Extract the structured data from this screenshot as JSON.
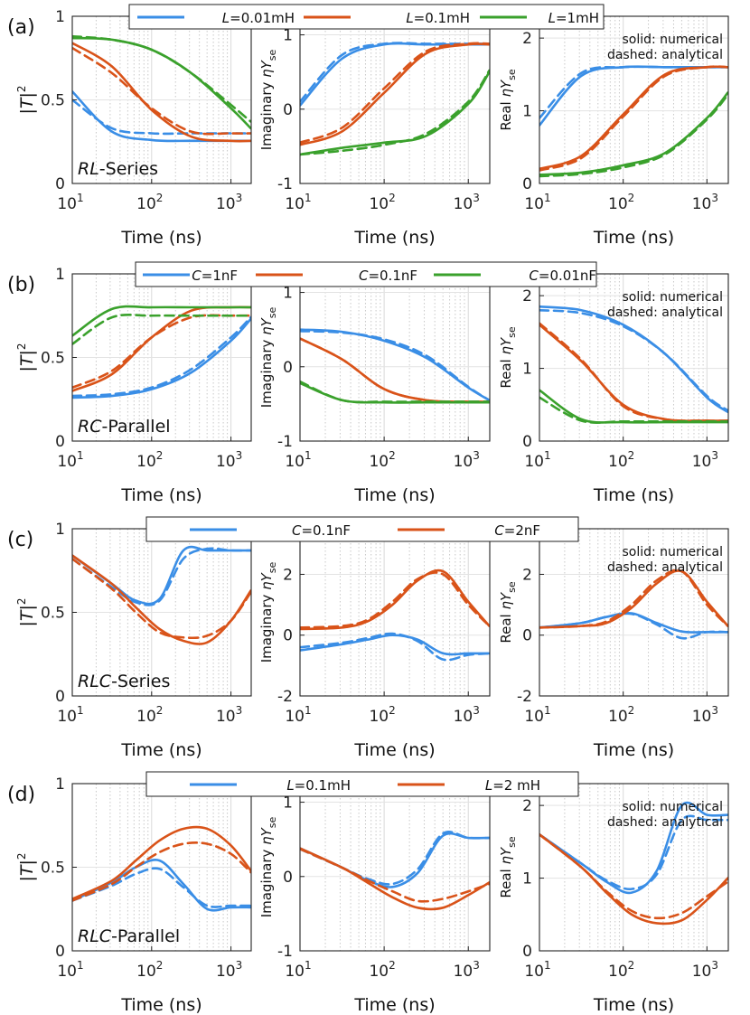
{
  "figure": {
    "xlabel": "Time (ns)",
    "ylabels": [
      "|T|²",
      "Imaginary ηY_se",
      "Real ηY_se"
    ],
    "note_solid": "solid: numerical",
    "note_dashed": "dashed: analytical",
    "colors": {
      "blue": "#3a8ee6",
      "red": "#d95319",
      "green": "#3aa12c"
    }
  },
  "chart_data": [
    {
      "type": "line",
      "row_label": "(a)",
      "annotation": "RL-Series",
      "title": "",
      "legend": [
        "L=0.01mH",
        "L=0.1mH",
        "L=1mH"
      ],
      "x": [
        1,
        1.5,
        2,
        2.5,
        3,
        3.25
      ],
      "xlabel": "Time (ns)",
      "xscale": "log",
      "xlim": [
        10,
        1800
      ],
      "panels": [
        {
          "ylabel": "|T|²",
          "ylim": [
            0,
            1
          ],
          "yticks": [
            0,
            0.5,
            1
          ],
          "series": [
            {
              "name": "L=0.01mH",
              "color": "blue",
              "solid": [
                0.55,
                0.31,
                0.26,
                0.255,
                0.255,
                0.255
              ],
              "dashed": [
                0.5,
                0.33,
                0.3,
                0.3,
                0.3,
                0.3
              ]
            },
            {
              "name": "L=0.1mH",
              "color": "red",
              "solid": [
                0.84,
                0.7,
                0.44,
                0.28,
                0.255,
                0.255
              ],
              "dashed": [
                0.81,
                0.66,
                0.45,
                0.31,
                0.3,
                0.3
              ]
            },
            {
              "name": "L=1mH",
              "color": "green",
              "solid": [
                0.87,
                0.86,
                0.8,
                0.66,
                0.45,
                0.33
              ],
              "dashed": [
                0.88,
                0.86,
                0.8,
                0.66,
                0.47,
                0.37
              ]
            }
          ]
        },
        {
          "ylabel": "Imaginary ηY_se",
          "ylim": [
            -1,
            1.25
          ],
          "yticks": [
            -1,
            0,
            1
          ],
          "series": [
            {
              "name": "L=0.01mH",
              "color": "blue",
              "solid": [
                0.05,
                0.68,
                0.87,
                0.87,
                0.87,
                0.87
              ],
              "dashed": [
                0.1,
                0.73,
                0.88,
                0.88,
                0.88,
                0.88
              ]
            },
            {
              "name": "L=0.1mH",
              "color": "red",
              "solid": [
                -0.48,
                -0.3,
                0.22,
                0.75,
                0.87,
                0.87
              ],
              "dashed": [
                -0.45,
                -0.25,
                0.28,
                0.78,
                0.88,
                0.88
              ]
            },
            {
              "name": "L=1mH",
              "color": "green",
              "solid": [
                -0.61,
                -0.52,
                -0.45,
                -0.36,
                0.07,
                0.5
              ],
              "dashed": [
                -0.61,
                -0.56,
                -0.48,
                -0.33,
                0.1,
                0.52
              ]
            }
          ]
        },
        {
          "ylabel": "Real ηY_se",
          "ylim": [
            0,
            2.3
          ],
          "yticks": [
            0,
            1,
            2
          ],
          "series": [
            {
              "name": "L=0.01mH",
              "color": "blue",
              "solid": [
                0.8,
                1.48,
                1.6,
                1.6,
                1.6,
                1.6
              ],
              "dashed": [
                0.9,
                1.52,
                1.6,
                1.6,
                1.6,
                1.6
              ]
            },
            {
              "name": "L=0.1mH",
              "color": "red",
              "solid": [
                0.2,
                0.38,
                0.95,
                1.5,
                1.6,
                1.6
              ],
              "dashed": [
                0.18,
                0.35,
                0.92,
                1.48,
                1.6,
                1.6
              ]
            },
            {
              "name": "L=1mH",
              "color": "green",
              "solid": [
                0.12,
                0.15,
                0.25,
                0.42,
                0.9,
                1.25
              ],
              "dashed": [
                0.1,
                0.13,
                0.22,
                0.4,
                0.88,
                1.22
              ]
            }
          ]
        }
      ]
    },
    {
      "type": "line",
      "row_label": "(b)",
      "annotation": "RC-Parallel",
      "title": "",
      "legend": [
        "C=1nF",
        "C=0.1nF",
        "C=0.01nF"
      ],
      "x": [
        1,
        1.5,
        2,
        2.5,
        3,
        3.25
      ],
      "xlabel": "Time (ns)",
      "xscale": "log",
      "xlim": [
        10,
        1800
      ],
      "panels": [
        {
          "ylabel": "|T|²",
          "ylim": [
            0,
            1
          ],
          "yticks": [
            0,
            0.5,
            1
          ],
          "series": [
            {
              "name": "C=1nF",
              "color": "blue",
              "solid": [
                0.26,
                0.27,
                0.31,
                0.41,
                0.6,
                0.73
              ],
              "dashed": [
                0.27,
                0.28,
                0.32,
                0.43,
                0.62,
                0.74
              ]
            },
            {
              "name": "C=0.1nF",
              "color": "red",
              "solid": [
                0.3,
                0.4,
                0.62,
                0.78,
                0.8,
                0.8
              ],
              "dashed": [
                0.32,
                0.42,
                0.62,
                0.74,
                0.75,
                0.75
              ]
            },
            {
              "name": "C=0.01nF",
              "color": "green",
              "solid": [
                0.63,
                0.79,
                0.8,
                0.8,
                0.8,
                0.8
              ],
              "dashed": [
                0.58,
                0.74,
                0.75,
                0.75,
                0.75,
                0.75
              ]
            }
          ]
        },
        {
          "ylabel": "Imaginary ηY_se",
          "ylim": [
            -1,
            1.25
          ],
          "yticks": [
            -1,
            0,
            1
          ],
          "series": [
            {
              "name": "C=1nF",
              "color": "blue",
              "solid": [
                0.5,
                0.47,
                0.35,
                0.12,
                -0.28,
                -0.45
              ],
              "dashed": [
                0.48,
                0.46,
                0.37,
                0.15,
                -0.27,
                -0.45
              ]
            },
            {
              "name": "C=0.1nF",
              "color": "red",
              "solid": [
                0.38,
                0.1,
                -0.3,
                -0.45,
                -0.47,
                -0.47
              ],
              "dashed": [
                0.38,
                0.1,
                -0.3,
                -0.45,
                -0.47,
                -0.47
              ]
            },
            {
              "name": "C=0.01nF",
              "color": "green",
              "solid": [
                -0.22,
                -0.45,
                -0.48,
                -0.48,
                -0.48,
                -0.48
              ],
              "dashed": [
                -0.2,
                -0.45,
                -0.47,
                -0.47,
                -0.47,
                -0.47
              ]
            }
          ]
        },
        {
          "ylabel": "Real ηY_se",
          "ylim": [
            0,
            2.3
          ],
          "yticks": [
            0,
            1,
            2
          ],
          "series": [
            {
              "name": "C=1nF",
              "color": "blue",
              "solid": [
                1.85,
                1.8,
                1.6,
                1.2,
                0.6,
                0.4
              ],
              "dashed": [
                1.8,
                1.76,
                1.58,
                1.2,
                0.62,
                0.42
              ]
            },
            {
              "name": "C=0.1nF",
              "color": "red",
              "solid": [
                1.6,
                1.1,
                0.5,
                0.3,
                0.28,
                0.28
              ],
              "dashed": [
                1.62,
                1.12,
                0.48,
                0.3,
                0.28,
                0.28
              ]
            },
            {
              "name": "C=0.01nF",
              "color": "green",
              "solid": [
                0.7,
                0.3,
                0.26,
                0.26,
                0.26,
                0.26
              ],
              "dashed": [
                0.6,
                0.28,
                0.27,
                0.27,
                0.27,
                0.27
              ]
            }
          ]
        }
      ]
    },
    {
      "type": "line",
      "row_label": "(c)",
      "annotation": "RLC-Series",
      "title": "",
      "legend": [
        "C=0.1nF",
        "C=2nF"
      ],
      "x": [
        1,
        1.5,
        1.8,
        2.1,
        2.4,
        2.7,
        3.0,
        3.25
      ],
      "xlabel": "Time (ns)",
      "xscale": "log",
      "xlim": [
        10,
        1800
      ],
      "panels": [
        {
          "ylabel": "|T|²",
          "ylim": [
            0,
            1
          ],
          "yticks": [
            0,
            0.5,
            1
          ],
          "series": [
            {
              "name": "C=0.1nF",
              "color": "blue",
              "solid": [
                0.84,
                0.67,
                0.57,
                0.58,
                0.87,
                0.87,
                0.87,
                0.87
              ],
              "dashed": [
                0.82,
                0.65,
                0.56,
                0.57,
                0.82,
                0.88,
                0.87,
                0.87
              ]
            },
            {
              "name": "C=2nF",
              "color": "red",
              "solid": [
                0.84,
                0.67,
                0.53,
                0.4,
                0.33,
                0.32,
                0.45,
                0.63
              ],
              "dashed": [
                0.82,
                0.64,
                0.5,
                0.38,
                0.35,
                0.36,
                0.45,
                0.62
              ]
            }
          ]
        },
        {
          "ylabel": "Imaginary ηY_se",
          "ylim": [
            -2,
            3.5
          ],
          "yticks": [
            -2,
            0,
            2
          ],
          "series": [
            {
              "name": "C=0.1nF",
              "color": "blue",
              "solid": [
                -0.5,
                -0.3,
                -0.15,
                0,
                -0.15,
                -0.6,
                -0.6,
                -0.6
              ],
              "dashed": [
                -0.4,
                -0.25,
                -0.1,
                0.05,
                -0.2,
                -0.8,
                -0.65,
                -0.6
              ]
            },
            {
              "name": "C=2nF",
              "color": "red",
              "solid": [
                0.2,
                0.25,
                0.45,
                1.0,
                1.8,
                2.1,
                1.1,
                0.3
              ],
              "dashed": [
                0.25,
                0.3,
                0.5,
                1.1,
                1.85,
                2.0,
                1.0,
                0.3
              ]
            }
          ]
        },
        {
          "ylabel": "Real ηY_se",
          "ylim": [
            -2,
            3.5
          ],
          "yticks": [
            -2,
            0,
            2
          ],
          "series": [
            {
              "name": "C=0.1nF",
              "color": "blue",
              "solid": [
                0.25,
                0.4,
                0.6,
                0.72,
                0.4,
                0.12,
                0.1,
                0.1
              ],
              "dashed": [
                0.25,
                0.4,
                0.6,
                0.7,
                0.35,
                -0.1,
                0.1,
                0.1
              ]
            },
            {
              "name": "C=2nF",
              "color": "red",
              "solid": [
                0.25,
                0.3,
                0.4,
                0.9,
                1.7,
                2.1,
                1.1,
                0.3
              ],
              "dashed": [
                0.25,
                0.3,
                0.45,
                1.0,
                1.8,
                2.1,
                1.0,
                0.3
              ]
            }
          ]
        }
      ]
    },
    {
      "type": "line",
      "row_label": "(d)",
      "annotation": "RLC-Parallel",
      "title": "",
      "legend": [
        "L=0.1mH",
        "L=2 mH"
      ],
      "x": [
        1,
        1.5,
        1.8,
        2.1,
        2.4,
        2.7,
        3.0,
        3.25
      ],
      "xlabel": "Time (ns)",
      "xscale": "log",
      "xlim": [
        10,
        1800
      ],
      "panels": [
        {
          "ylabel": "|T|²",
          "ylim": [
            0,
            1
          ],
          "yticks": [
            0,
            0.5,
            1
          ],
          "series": [
            {
              "name": "L=0.1mH",
              "color": "blue",
              "solid": [
                0.3,
                0.41,
                0.5,
                0.54,
                0.4,
                0.25,
                0.26,
                0.26
              ],
              "dashed": [
                0.3,
                0.39,
                0.46,
                0.49,
                0.38,
                0.27,
                0.27,
                0.27
              ]
            },
            {
              "name": "L=2 mH",
              "color": "red",
              "solid": [
                0.31,
                0.42,
                0.54,
                0.66,
                0.73,
                0.73,
                0.63,
                0.48
              ],
              "dashed": [
                0.3,
                0.4,
                0.5,
                0.59,
                0.64,
                0.64,
                0.58,
                0.47
              ]
            }
          ]
        },
        {
          "ylabel": "Imaginary ηY_se",
          "ylim": [
            -1,
            1.25
          ],
          "yticks": [
            -1,
            0,
            1
          ],
          "series": [
            {
              "name": "L=0.1mH",
              "color": "blue",
              "solid": [
                0.38,
                0.12,
                -0.05,
                -0.14,
                0.05,
                0.55,
                0.52,
                0.52
              ],
              "dashed": [
                0.37,
                0.12,
                -0.03,
                -0.1,
                0.1,
                0.58,
                0.52,
                0.52
              ]
            },
            {
              "name": "L=2 mH",
              "color": "red",
              "solid": [
                0.38,
                0.12,
                -0.08,
                -0.28,
                -0.42,
                -0.42,
                -0.25,
                -0.08
              ],
              "dashed": [
                0.37,
                0.12,
                -0.05,
                -0.2,
                -0.33,
                -0.3,
                -0.2,
                -0.1
              ]
            }
          ]
        },
        {
          "ylabel": "Real ηY_se",
          "ylim": [
            0,
            2.3
          ],
          "yticks": [
            0,
            1,
            2
          ],
          "series": [
            {
              "name": "L=0.1mH",
              "color": "blue",
              "solid": [
                1.6,
                1.2,
                0.95,
                0.8,
                1.1,
                2.0,
                1.87,
                1.87
              ],
              "dashed": [
                1.6,
                1.2,
                0.97,
                0.85,
                1.05,
                1.8,
                1.8,
                1.8
              ]
            },
            {
              "name": "L=2 mH",
              "color": "red",
              "solid": [
                1.6,
                1.15,
                0.8,
                0.5,
                0.38,
                0.42,
                0.7,
                1.0
              ],
              "dashed": [
                1.6,
                1.15,
                0.82,
                0.55,
                0.45,
                0.52,
                0.75,
                0.95
              ]
            }
          ]
        }
      ]
    }
  ]
}
